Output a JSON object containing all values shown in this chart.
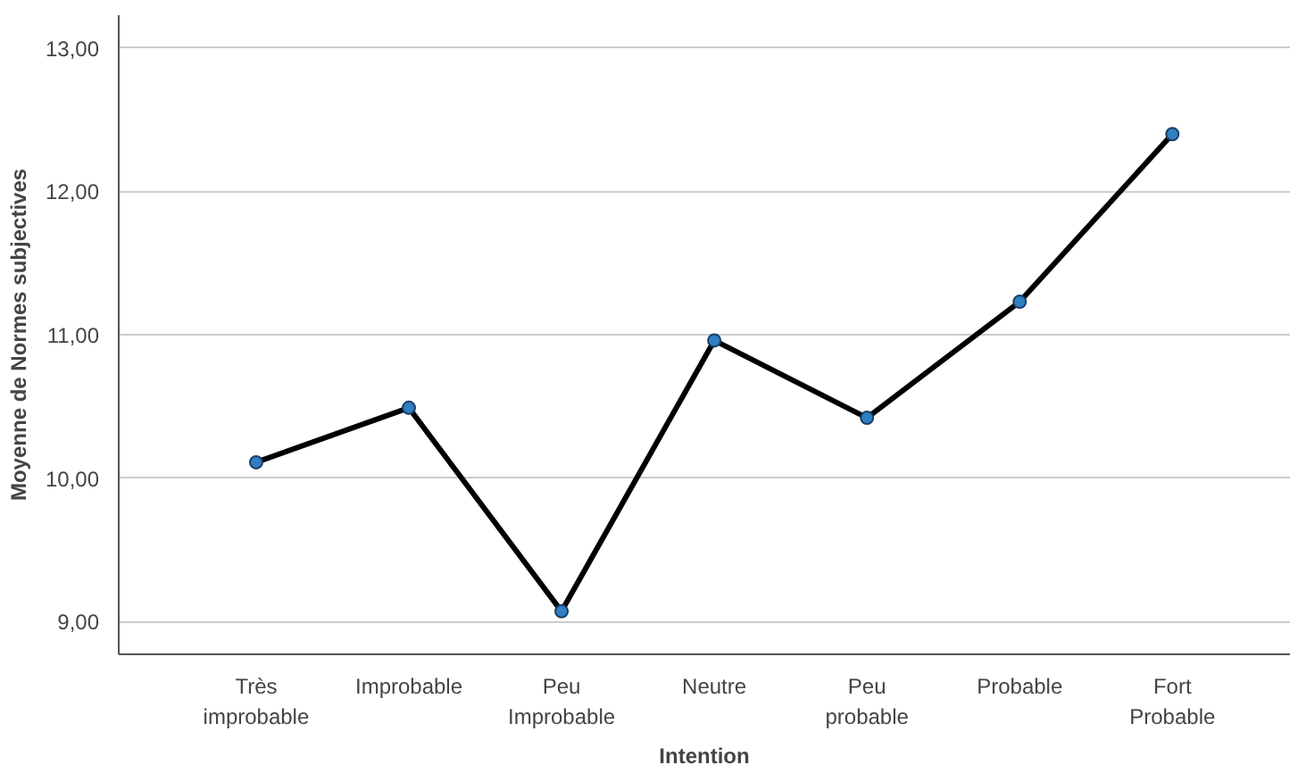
{
  "chart_data": {
    "type": "line",
    "xlabel": "Intention",
    "ylabel": "Moyenne de Normes subjectives",
    "categories": [
      "Très\nimprobable",
      "Improbable",
      "Peu\nImprobable",
      "Neutre",
      "Peu\nprobable",
      "Probable",
      "Fort\nProbable"
    ],
    "series": [
      {
        "color": "#000000",
        "values": [
          10.11,
          10.49,
          9.07,
          10.96,
          10.42,
          11.23,
          12.4
        ]
      }
    ],
    "ylim": [
      8.77,
      13.23
    ],
    "yticks": [
      {
        "value": 9,
        "label": "9,00"
      },
      {
        "value": 10,
        "label": "10,00"
      },
      {
        "value": 11,
        "label": "11,00"
      },
      {
        "value": 12,
        "label": "12,00"
      },
      {
        "value": 13,
        "label": "13,00"
      }
    ],
    "grid": "y",
    "marker": "circle",
    "line_style": "solid"
  }
}
